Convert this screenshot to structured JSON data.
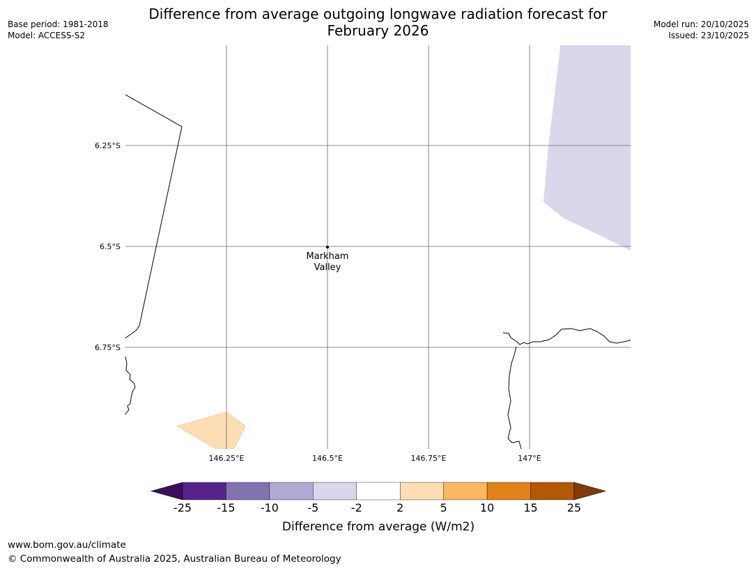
{
  "title": {
    "line1": "Difference from average outgoing longwave radiation forecast for",
    "line2": "February 2026"
  },
  "meta": {
    "base_period": "Base period: 1981-2018",
    "model": "Model: ACCESS-S2",
    "model_run": "Model run: 20/10/2025",
    "issued": "Issued: 23/10/2025"
  },
  "map": {
    "lat_labels": [
      "6.25°S",
      "6.5°S",
      "6.75°S"
    ],
    "lon_labels": [
      "146.25°E",
      "146.5°E",
      "146.75°E",
      "147°E"
    ],
    "place": {
      "line1": "Markham",
      "line2": "Valley"
    }
  },
  "colorbar": {
    "label": "Difference from average (W/m2)",
    "ticks": [
      "-25",
      "-15",
      "-10",
      "-5",
      "-2",
      "2",
      "5",
      "10",
      "15",
      "25"
    ],
    "colors": {
      "under": "#3b0f5a",
      "bins": [
        "#57238a",
        "#8173b0",
        "#b1a8d3",
        "#d8d8ea",
        "#ffffff",
        "#fddeb4",
        "#fbb761",
        "#e0831b",
        "#b35807"
      ],
      "over": "#7f3b08"
    }
  },
  "footer": {
    "url": "www.bom.gov.au/climate",
    "copyright": "© Commonwealth of Australia 2025, Australian Bureau of Meteorology"
  }
}
